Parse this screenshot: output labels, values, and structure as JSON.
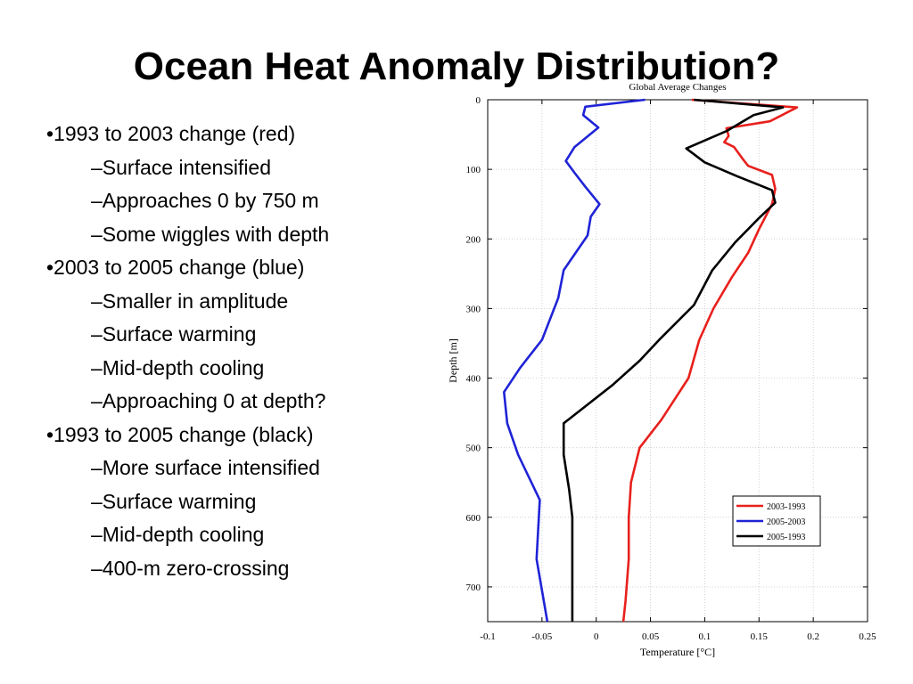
{
  "slide": {
    "title": "Ocean Heat Anomaly Distribution?",
    "bullets": [
      {
        "text": "•1993 to 2003 change (red)",
        "subs": [
          "–Surface intensified",
          "–Approaches 0 by 750 m",
          "–Some wiggles with depth"
        ]
      },
      {
        "text": "•2003 to 2005 change (blue)",
        "subs": [
          "–Smaller in amplitude",
          "–Surface warming",
          "–Mid-depth cooling",
          "–Approaching 0 at depth?"
        ]
      },
      {
        "text": "•1993 to 2005 change (black)",
        "subs": [
          "–More surface intensified",
          "–Surface warming",
          "–Mid-depth cooling",
          "–400-m zero-crossing"
        ]
      }
    ]
  },
  "chart_data": {
    "type": "line",
    "title": "Global Average Changes",
    "xlabel": "Temperature [°C]",
    "ylabel": "Depth [m]",
    "xlim": [
      -0.1,
      0.25
    ],
    "ylim": [
      0,
      750
    ],
    "y_inverted": true,
    "grid": true,
    "legend_position": "bottom-right",
    "xticks": [
      -0.1,
      -0.05,
      0,
      0.05,
      0.1,
      0.15,
      0.2,
      0.25
    ],
    "xtick_labels": [
      "-0.1",
      "-0.05",
      "0",
      "0.05",
      "0.1",
      "0.15",
      "0.2",
      "0.25"
    ],
    "yticks": [
      0,
      100,
      200,
      300,
      400,
      500,
      600,
      700
    ],
    "ytick_labels": [
      "0",
      "100",
      "200",
      "300",
      "400",
      "500",
      "600",
      "700"
    ],
    "series": [
      {
        "name": "2003-1993",
        "color": "#e8201c",
        "points": [
          [
            0.088,
            0
          ],
          [
            0.185,
            11
          ],
          [
            0.16,
            31
          ],
          [
            0.12,
            41
          ],
          [
            0.122,
            52
          ],
          [
            0.118,
            61
          ],
          [
            0.127,
            68
          ],
          [
            0.135,
            85
          ],
          [
            0.14,
            95
          ],
          [
            0.162,
            108
          ],
          [
            0.165,
            128
          ],
          [
            0.162,
            150
          ],
          [
            0.15,
            186
          ],
          [
            0.14,
            220
          ],
          [
            0.125,
            255
          ],
          [
            0.108,
            300
          ],
          [
            0.095,
            345
          ],
          [
            0.085,
            400
          ],
          [
            0.06,
            460
          ],
          [
            0.04,
            500
          ],
          [
            0.032,
            550
          ],
          [
            0.03,
            600
          ],
          [
            0.03,
            660
          ],
          [
            0.027,
            720
          ],
          [
            0.025,
            750
          ]
        ]
      },
      {
        "name": "2005-2003",
        "color": "#1f23d6",
        "points": [
          [
            0.045,
            0
          ],
          [
            -0.01,
            10
          ],
          [
            -0.012,
            22
          ],
          [
            0.002,
            40
          ],
          [
            -0.02,
            68
          ],
          [
            -0.028,
            88
          ],
          [
            -0.02,
            105
          ],
          [
            -0.01,
            125
          ],
          [
            0.003,
            150
          ],
          [
            -0.005,
            168
          ],
          [
            -0.008,
            195
          ],
          [
            -0.03,
            245
          ],
          [
            -0.035,
            285
          ],
          [
            -0.05,
            345
          ],
          [
            -0.07,
            385
          ],
          [
            -0.085,
            420
          ],
          [
            -0.082,
            465
          ],
          [
            -0.072,
            510
          ],
          [
            -0.052,
            575
          ],
          [
            -0.055,
            660
          ],
          [
            -0.045,
            750
          ]
        ]
      },
      {
        "name": "2005-1993",
        "color": "#000000",
        "points": [
          [
            0.09,
            0
          ],
          [
            0.172,
            11
          ],
          [
            0.145,
            22
          ],
          [
            0.12,
            45
          ],
          [
            0.083,
            70
          ],
          [
            0.1,
            90
          ],
          [
            0.13,
            110
          ],
          [
            0.162,
            130
          ],
          [
            0.165,
            148
          ],
          [
            0.15,
            170
          ],
          [
            0.128,
            205
          ],
          [
            0.107,
            245
          ],
          [
            0.09,
            295
          ],
          [
            0.058,
            345
          ],
          [
            0.04,
            375
          ],
          [
            0.015,
            410
          ],
          [
            -0.03,
            465
          ],
          [
            -0.03,
            510
          ],
          [
            -0.025,
            560
          ],
          [
            -0.022,
            600
          ],
          [
            -0.022,
            660
          ],
          [
            -0.022,
            700
          ],
          [
            -0.022,
            750
          ]
        ]
      }
    ]
  }
}
